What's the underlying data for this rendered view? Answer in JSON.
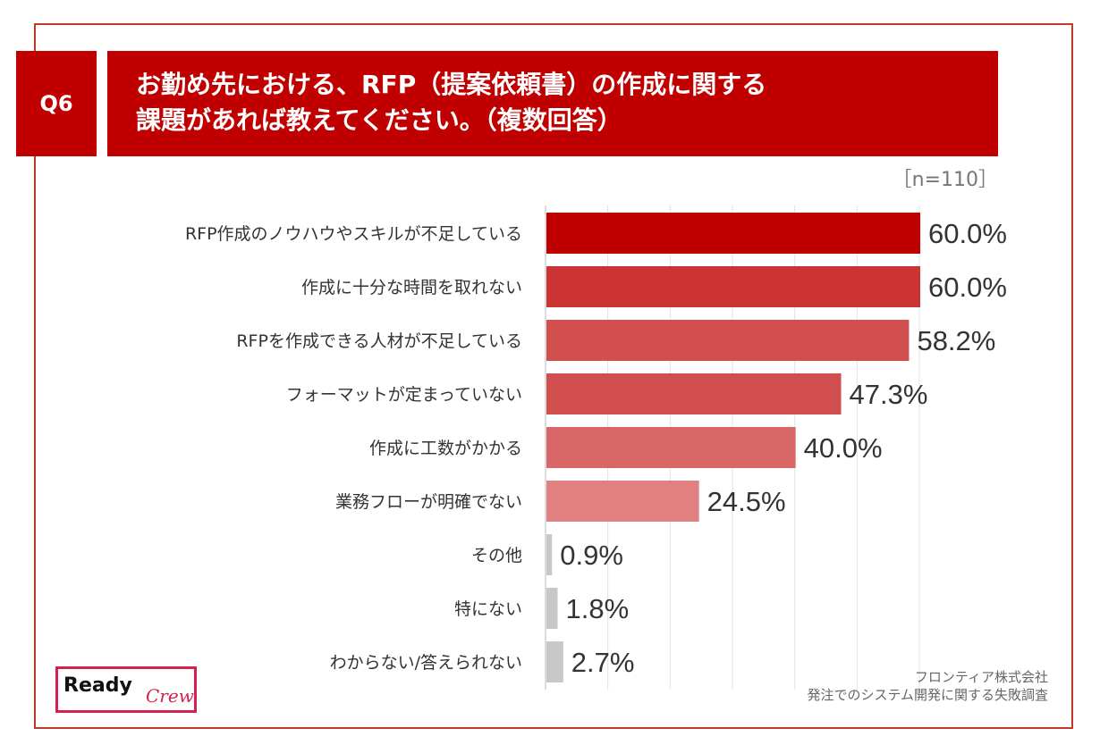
{
  "header": {
    "question_tag": "Q6",
    "title_line1": "お勤め先における、RFP（提案依頼書）の作成に関する",
    "title_line2": "課題があれば教えてください。（複数回答）",
    "sample_size": "［n=110］"
  },
  "chart_data": {
    "type": "bar",
    "orientation": "horizontal",
    "categories": [
      "RFP作成のノウハウやスキルが不足している",
      "作成に十分な時間を取れない",
      "RFPを作成できる人材が不足している",
      "フォーマットが定まっていない",
      "作成に工数がかかる",
      "業務フローが明確でない",
      "その他",
      "特にない",
      "わからない/答えられない"
    ],
    "values": [
      60.0,
      60.0,
      58.2,
      47.3,
      40.0,
      24.5,
      0.9,
      1.8,
      2.7
    ],
    "value_labels": [
      "60.0%",
      "60.0%",
      "58.2%",
      "47.3%",
      "40.0%",
      "24.5%",
      "0.9%",
      "1.8%",
      "2.7%"
    ],
    "bar_colors": [
      "#c00000",
      "#cc3333",
      "#d24f4f",
      "#d24f4f",
      "#d96666",
      "#e08080",
      "#c8c8c8",
      "#c8c8c8",
      "#c8c8c8"
    ],
    "xlim": [
      0,
      60
    ],
    "grid": true
  },
  "footer": {
    "source_line1": "フロンティア株式会社",
    "source_line2": "発注でのシステム開発に関する失敗調査",
    "logo_ready": "Ready",
    "logo_crew": "Crew"
  }
}
